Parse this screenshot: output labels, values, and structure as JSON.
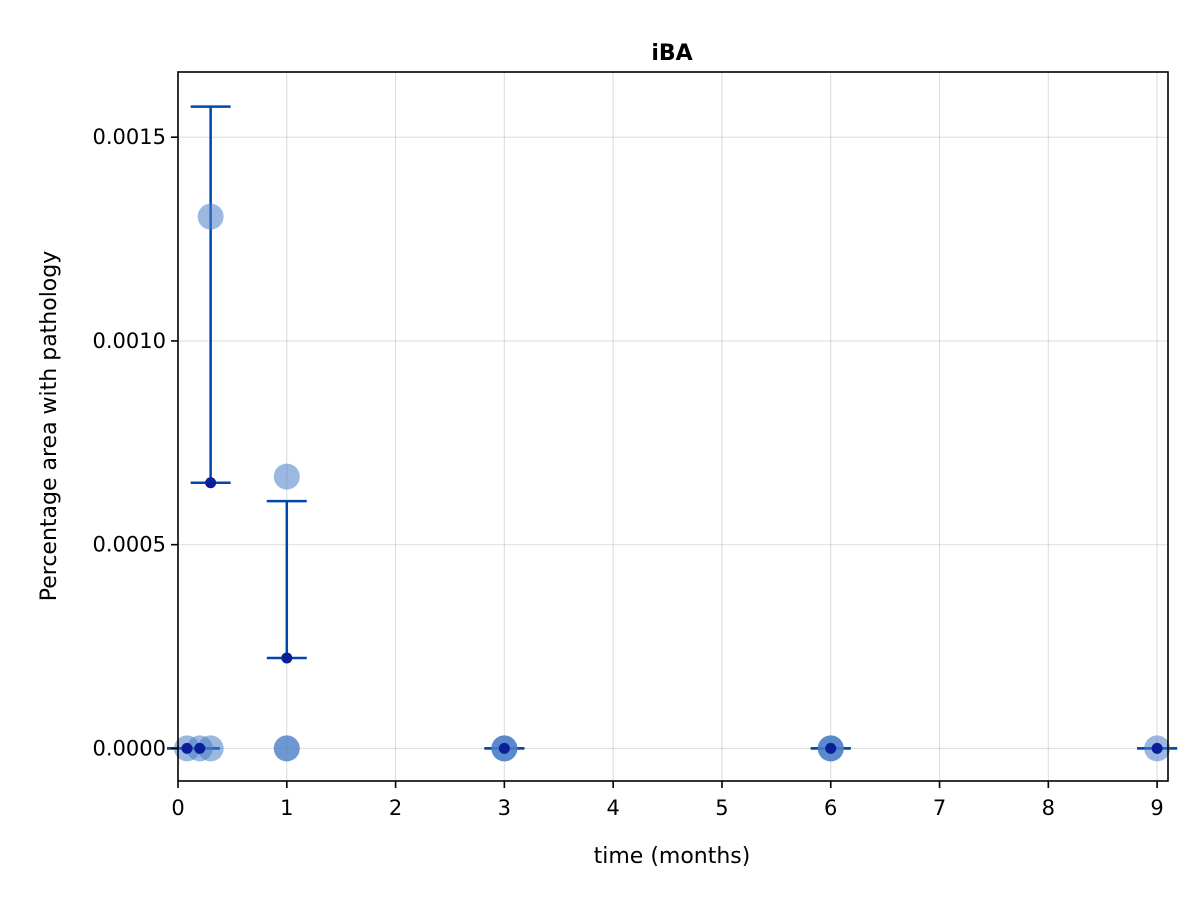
{
  "chart_data": {
    "type": "scatter",
    "title": "iBA",
    "xlabel": "time (months)",
    "ylabel": "Percentage area with pathology",
    "xlim": [
      0,
      9.1
    ],
    "ylim": [
      -8e-05,
      0.00166
    ],
    "x_ticks": [
      0,
      1,
      2,
      3,
      4,
      5,
      6,
      7,
      8,
      9
    ],
    "x_tick_labels": [
      "0",
      "1",
      "2",
      "3",
      "4",
      "5",
      "6",
      "7",
      "8",
      "9"
    ],
    "y_ticks": [
      0,
      0.0005,
      0.001,
      0.0015
    ],
    "y_tick_labels": [
      "0.0000",
      "0.0005",
      "0.0010",
      "0.0015"
    ],
    "grid": true,
    "colors": {
      "points": "#4a7ec8",
      "mean": "#0a1f99",
      "error_bar": "#0047ab"
    },
    "points": [
      {
        "x": 0.083,
        "y": 0
      },
      {
        "x": 0.2,
        "y": 0
      },
      {
        "x": 0.3,
        "y": 0
      },
      {
        "x": 0.3,
        "y": 0.001305
      },
      {
        "x": 1,
        "y": 0
      },
      {
        "x": 1,
        "y": 0
      },
      {
        "x": 1,
        "y": 0.000667
      },
      {
        "x": 3,
        "y": 0
      },
      {
        "x": 3,
        "y": 0
      },
      {
        "x": 3,
        "y": 0
      },
      {
        "x": 6,
        "y": 0
      },
      {
        "x": 6,
        "y": 0
      },
      {
        "x": 6,
        "y": 0
      },
      {
        "x": 9,
        "y": 0
      }
    ],
    "summary": [
      {
        "x": 0.083,
        "mean": 0,
        "lower": 0,
        "upper": 0
      },
      {
        "x": 0.2,
        "mean": 0,
        "lower": 0,
        "upper": 0
      },
      {
        "x": 0.3,
        "mean": 0.000652,
        "lower": 0.000652,
        "upper": 0.001575
      },
      {
        "x": 1,
        "mean": 0.000222,
        "lower": 0.000222,
        "upper": 0.000607
      },
      {
        "x": 3,
        "mean": 0,
        "lower": 0,
        "upper": 0
      },
      {
        "x": 6,
        "mean": 0,
        "lower": 0,
        "upper": 0
      },
      {
        "x": 9,
        "mean": 0,
        "lower": 0,
        "upper": 0
      }
    ]
  }
}
